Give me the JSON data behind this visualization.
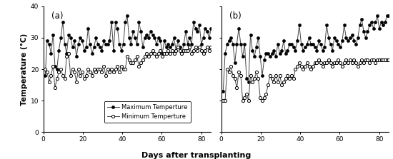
{
  "panel_a_max": [
    18,
    29,
    28,
    25,
    31,
    21,
    20,
    26,
    30,
    35,
    28,
    25,
    31,
    30,
    27,
    29,
    24,
    28,
    30,
    29,
    26,
    27,
    33,
    28,
    25,
    27,
    30,
    28,
    27,
    26,
    29,
    28,
    28,
    29,
    35,
    26,
    35,
    33,
    28,
    26,
    28,
    35,
    37,
    30,
    28,
    32,
    30,
    28,
    35,
    32,
    27,
    30,
    31,
    30,
    32,
    31,
    30,
    28,
    30,
    29,
    25,
    29,
    27,
    28,
    27,
    28,
    30,
    26,
    29,
    27,
    25,
    28,
    32,
    28,
    30,
    28,
    35,
    33,
    32,
    34,
    28,
    30,
    33,
    32,
    30,
    33
  ],
  "panel_a_min": [
    20,
    19,
    16,
    18,
    21,
    14,
    17,
    19,
    20,
    18,
    17,
    24,
    25,
    18,
    20,
    19,
    16,
    20,
    18,
    19,
    17,
    18,
    20,
    19,
    18,
    20,
    19,
    20,
    20,
    19,
    21,
    18,
    20,
    19,
    20,
    19,
    20,
    21,
    19,
    21,
    20,
    20,
    24,
    23,
    22,
    22,
    23,
    24,
    21,
    22,
    23,
    24,
    25,
    24,
    25,
    26,
    25,
    24,
    25,
    26,
    24,
    25,
    25,
    26,
    25,
    26,
    25,
    26,
    27,
    26,
    25,
    26,
    26,
    26,
    27,
    25,
    26,
    27,
    26,
    27,
    26,
    25,
    26,
    27,
    26,
    27
  ],
  "panel_b_max": [
    13,
    25,
    28,
    29,
    30,
    28,
    22,
    28,
    33,
    28,
    24,
    28,
    17,
    16,
    31,
    26,
    24,
    27,
    30,
    24,
    18,
    23,
    25,
    25,
    24,
    25,
    26,
    24,
    28,
    25,
    26,
    29,
    25,
    26,
    28,
    28,
    27,
    26,
    29,
    34,
    28,
    26,
    27,
    28,
    30,
    28,
    28,
    27,
    26,
    29,
    28,
    26,
    27,
    34,
    30,
    28,
    26,
    30,
    29,
    28,
    27,
    29,
    34,
    30,
    29,
    30,
    31,
    29,
    28,
    30,
    34,
    36,
    32,
    30,
    32,
    34,
    35,
    33,
    35,
    37,
    33,
    35,
    34,
    35,
    37,
    37
  ],
  "panel_b_min": [
    10,
    10,
    20,
    19,
    21,
    18,
    17,
    14,
    19,
    18,
    10,
    11,
    12,
    10,
    18,
    16,
    17,
    19,
    17,
    11,
    10,
    11,
    12,
    15,
    18,
    17,
    16,
    18,
    16,
    18,
    15,
    16,
    17,
    18,
    17,
    18,
    17,
    20,
    21,
    22,
    21,
    20,
    21,
    22,
    21,
    20,
    21,
    22,
    22,
    23,
    22,
    21,
    22,
    22,
    23,
    22,
    21,
    22,
    22,
    23,
    22,
    21,
    22,
    23,
    22,
    23,
    22,
    23,
    22,
    21,
    22,
    23,
    22,
    23,
    23,
    22,
    23,
    23,
    22,
    23,
    23,
    23,
    23,
    23,
    23,
    23
  ],
  "xlim": [
    0,
    85
  ],
  "ylim": [
    0,
    40
  ],
  "yticks": [
    0,
    10,
    20,
    30,
    40
  ],
  "xticks": [
    0,
    20,
    40,
    60,
    80
  ],
  "xlabel": "Days after transplanting",
  "ylabel": "Temperature (°C)",
  "label_max": "Maximum Temperture",
  "label_min": "Minimum Temperture",
  "panel_labels": [
    "(a)",
    "(b)"
  ],
  "bg_color": "#ffffff",
  "line_color": "#444444"
}
